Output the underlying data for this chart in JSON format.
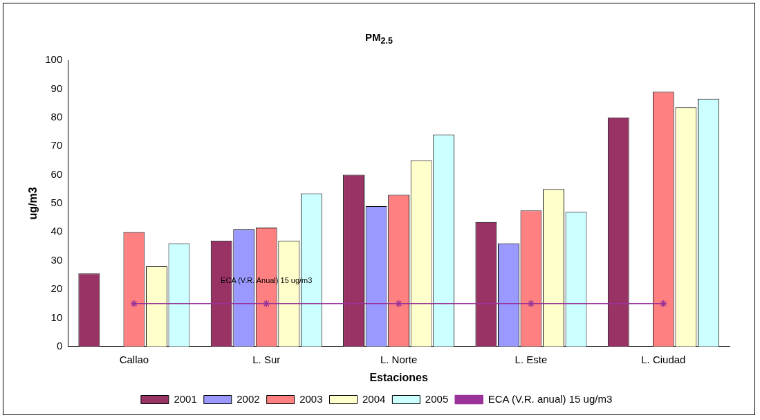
{
  "chart_data": {
    "type": "bar",
    "title": "PM$_{2.5}$",
    "xlabel": "Estaciones",
    "ylabel": "ug/m3",
    "categories": [
      "Callao",
      "L. Sur",
      "L. Norte",
      "L. Este",
      "L. Ciudad"
    ],
    "series": [
      {
        "name": "2001",
        "color": "#993366",
        "values": [
          25.5,
          37,
          60,
          43.5,
          80
        ]
      },
      {
        "name": "2002",
        "color": "#9999ff",
        "values": [
          null,
          41,
          49,
          36,
          null
        ]
      },
      {
        "name": "2003",
        "color": "#ff8080",
        "values": [
          40,
          41.5,
          53,
          47.5,
          89
        ]
      },
      {
        "name": "2004",
        "color": "#ffffcc",
        "values": [
          28,
          37,
          65,
          55,
          83.5
        ]
      },
      {
        "name": "2005",
        "color": "#ccffff",
        "values": [
          36,
          53.5,
          74,
          47,
          86.5
        ]
      },
      {
        "name": "ECA (V.R. anual) 15 ug/m3",
        "type": "line",
        "color": "#993399",
        "marker": "cross",
        "values": [
          15,
          15,
          15,
          15,
          15
        ]
      }
    ],
    "ylim": [
      0,
      100
    ],
    "yticks": [
      0,
      10,
      20,
      30,
      40,
      50,
      60,
      70,
      80,
      90,
      100
    ],
    "grid": false,
    "legend": "bottom",
    "annotations": [
      "ECA (V.R. Anual) 15 ug/m3"
    ]
  }
}
